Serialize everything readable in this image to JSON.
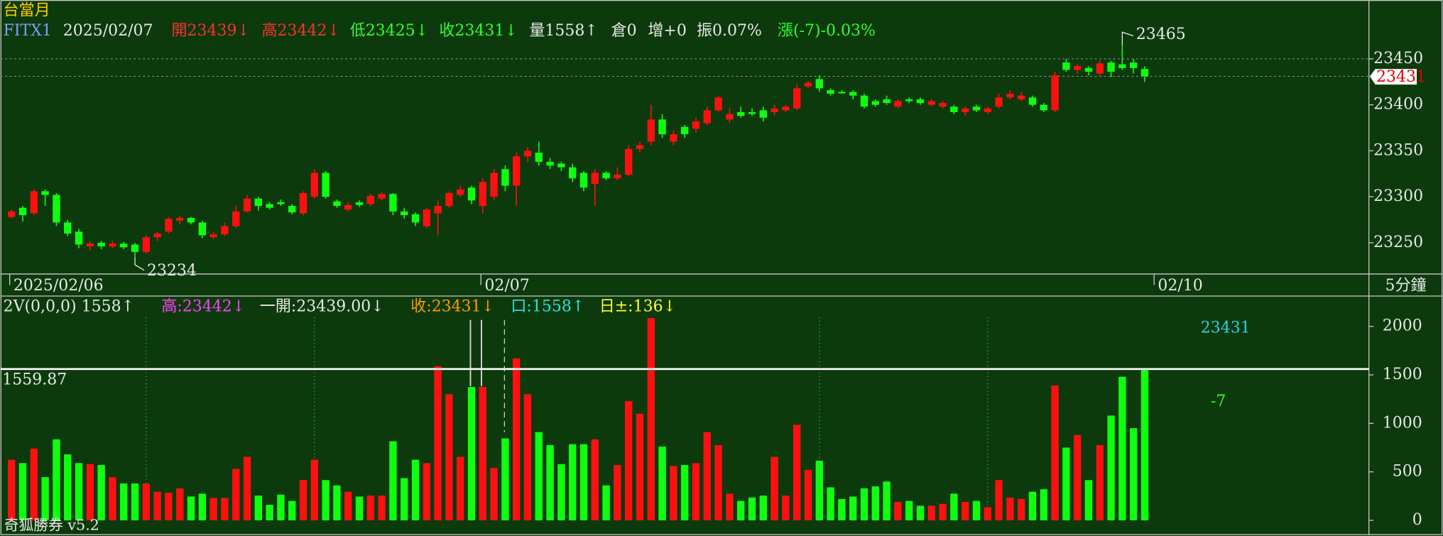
{
  "chart_data": [
    {
      "type": "candlestick",
      "title": "台當月",
      "info": [
        {
          "text": "FITX1",
          "color": "#7f9cff"
        },
        {
          "text": "2025/02/07",
          "color": "#e8e8e8"
        },
        {
          "text": "開23439↓",
          "color": "#ff3030"
        },
        {
          "text": "高23442↓",
          "color": "#ff3030"
        },
        {
          "text": "低23425↓",
          "color": "#30ff30"
        },
        {
          "text": "收23431↓",
          "color": "#30ff30"
        },
        {
          "text": "量1558↑",
          "color": "#e8e8e8"
        },
        {
          "text": "倉0",
          "color": "#e8e8e8"
        },
        {
          "text": "增+0",
          "color": "#e8e8e8"
        },
        {
          "text": "振0.07%",
          "color": "#e8e8e8"
        },
        {
          "text": "漲(-7)-0.03%",
          "color": "#30ff30"
        }
      ],
      "categories": [
        "2025/02/06",
        null,
        null,
        null,
        null,
        null,
        null,
        null,
        null,
        null,
        null,
        null,
        null,
        null,
        null,
        null,
        null,
        null,
        null,
        null,
        null,
        null,
        null,
        null,
        null,
        null,
        null,
        null,
        null,
        null,
        null,
        null,
        null,
        null,
        null,
        null,
        null,
        null,
        null,
        null,
        null,
        null,
        "02/07",
        null,
        null,
        null,
        null,
        null,
        null,
        null,
        null,
        null,
        null,
        null,
        null,
        null,
        null,
        null,
        null,
        null,
        null,
        null,
        null,
        null,
        null,
        null,
        null,
        null,
        null,
        null,
        null,
        null,
        null,
        null,
        null,
        null,
        null,
        null,
        null,
        null,
        null,
        null,
        null,
        null,
        null,
        null,
        null,
        null,
        null,
        null,
        null,
        null,
        null,
        null,
        null,
        null,
        null,
        null,
        null,
        null,
        null,
        null,
        "02/10"
      ],
      "ohlc": [
        [
          23278,
          23286,
          23276,
          23284
        ],
        [
          23288,
          23290,
          23273,
          23280
        ],
        [
          23282,
          23308,
          23280,
          23306
        ],
        [
          23306,
          23308,
          23290,
          23302
        ],
        [
          23302,
          23304,
          23268,
          23272
        ],
        [
          23272,
          23275,
          23257,
          23260
        ],
        [
          23262,
          23265,
          23244,
          23248
        ],
        [
          23246,
          23252,
          23242,
          23249
        ],
        [
          23250,
          23252,
          23243,
          23246
        ],
        [
          23246,
          23252,
          23244,
          23249
        ],
        [
          23249,
          23251,
          23243,
          23245
        ],
        [
          23248,
          23250,
          23234,
          23240
        ],
        [
          23240,
          23258,
          23238,
          23256
        ],
        [
          23256,
          23262,
          23252,
          23260
        ],
        [
          23262,
          23278,
          23260,
          23276
        ],
        [
          23274,
          23279,
          23270,
          23277
        ],
        [
          23277,
          23278,
          23270,
          23272
        ],
        [
          23272,
          23274,
          23255,
          23258
        ],
        [
          23256,
          23262,
          23254,
          23259
        ],
        [
          23259,
          23272,
          23257,
          23268
        ],
        [
          23268,
          23290,
          23266,
          23284
        ],
        [
          23284,
          23302,
          23283,
          23298
        ],
        [
          23298,
          23300,
          23285,
          23290
        ],
        [
          23292,
          23294,
          23286,
          23288
        ],
        [
          23294,
          23297,
          23290,
          23292
        ],
        [
          23290,
          23292,
          23281,
          23283
        ],
        [
          23282,
          23306,
          23280,
          23304
        ],
        [
          23300,
          23330,
          23298,
          23326
        ],
        [
          23326,
          23328,
          23298,
          23300
        ],
        [
          23295,
          23297,
          23288,
          23290
        ],
        [
          23286,
          23294,
          23284,
          23291
        ],
        [
          23294,
          23296,
          23289,
          23291
        ],
        [
          23292,
          23303,
          23290,
          23301
        ],
        [
          23298,
          23305,
          23296,
          23303
        ],
        [
          23303,
          23304,
          23280,
          23284
        ],
        [
          23284,
          23288,
          23276,
          23280
        ],
        [
          23281,
          23283,
          23268,
          23272
        ],
        [
          23268,
          23288,
          23266,
          23286
        ],
        [
          23282,
          23296,
          23258,
          23290
        ],
        [
          23290,
          23306,
          23288,
          23304
        ],
        [
          23302,
          23312,
          23300,
          23308
        ],
        [
          23310,
          23312,
          23292,
          23296
        ],
        [
          23290,
          23320,
          23282,
          23316
        ],
        [
          23300,
          23330,
          23296,
          23326
        ],
        [
          23330,
          23334,
          23306,
          23312
        ],
        [
          23312,
          23348,
          23290,
          23344
        ],
        [
          23344,
          23354,
          23338,
          23350
        ],
        [
          23348,
          23360,
          23334,
          23338
        ],
        [
          23338,
          23342,
          23330,
          23334
        ],
        [
          23336,
          23338,
          23328,
          23332
        ],
        [
          23332,
          23336,
          23316,
          23320
        ],
        [
          23326,
          23328,
          23306,
          23310
        ],
        [
          23314,
          23330,
          23290,
          23326
        ],
        [
          23326,
          23328,
          23318,
          23320
        ],
        [
          23320,
          23332,
          23318,
          23324
        ],
        [
          23324,
          23356,
          23322,
          23352
        ],
        [
          23352,
          23360,
          23348,
          23356
        ],
        [
          23360,
          23400,
          23356,
          23384
        ],
        [
          23384,
          23390,
          23364,
          23368
        ],
        [
          23360,
          23372,
          23356,
          23368
        ],
        [
          23376,
          23378,
          23364,
          23368
        ],
        [
          23374,
          23386,
          23370,
          23382
        ],
        [
          23380,
          23398,
          23378,
          23394
        ],
        [
          23394,
          23410,
          23392,
          23408
        ],
        [
          23384,
          23396,
          23380,
          23390
        ],
        [
          23392,
          23398,
          23386,
          23388
        ],
        [
          23392,
          23396,
          23388,
          23390
        ],
        [
          23394,
          23398,
          23382,
          23386
        ],
        [
          23392,
          23400,
          23388,
          23396
        ],
        [
          23394,
          23400,
          23392,
          23398
        ],
        [
          23396,
          23422,
          23394,
          23418
        ],
        [
          23420,
          23426,
          23418,
          23424
        ],
        [
          23428,
          23432,
          23414,
          23418
        ],
        [
          23416,
          23418,
          23410,
          23412
        ],
        [
          23414,
          23416,
          23412,
          23413
        ],
        [
          23414,
          23416,
          23406,
          23410
        ],
        [
          23410,
          23412,
          23396,
          23398
        ],
        [
          23404,
          23406,
          23398,
          23400
        ],
        [
          23406,
          23410,
          23400,
          23402
        ],
        [
          23398,
          23406,
          23396,
          23404
        ],
        [
          23406,
          23408,
          23402,
          23404
        ],
        [
          23406,
          23408,
          23400,
          23402
        ],
        [
          23400,
          23406,
          23398,
          23404
        ],
        [
          23398,
          23404,
          23396,
          23402
        ],
        [
          23398,
          23400,
          23390,
          23392
        ],
        [
          23392,
          23398,
          23388,
          23396
        ],
        [
          23398,
          23400,
          23392,
          23394
        ],
        [
          23392,
          23398,
          23390,
          23396
        ],
        [
          23398,
          23412,
          23396,
          23408
        ],
        [
          23408,
          23416,
          23406,
          23412
        ],
        [
          23406,
          23414,
          23404,
          23410
        ],
        [
          23408,
          23410,
          23398,
          23400
        ],
        [
          23400,
          23402,
          23392,
          23394
        ],
        [
          23394,
          23436,
          23392,
          23432
        ],
        [
          23446,
          23450,
          23436,
          23438
        ],
        [
          23438,
          23444,
          23434,
          23442
        ],
        [
          23440,
          23442,
          23432,
          23436
        ],
        [
          23434,
          23448,
          23432,
          23445
        ],
        [
          23446,
          23448,
          23430,
          23436
        ],
        [
          23444,
          23465,
          23438,
          23440
        ],
        [
          23446,
          23450,
          23434,
          23440
        ],
        [
          23439,
          23442,
          23425,
          23431
        ],
        null
      ],
      "up_color": "#ff1010",
      "down_color": "#10ff10",
      "ylim": [
        23216,
        23514
      ],
      "yticks": [
        23250,
        23300,
        23350,
        23400,
        23450
      ],
      "gridlines": [
        23450
      ],
      "last_price": 23431,
      "max_label": 23465,
      "min_label": 23234,
      "period": "5分鐘"
    },
    {
      "type": "bar",
      "info": [
        {
          "text": "2V(0,0,0) 1558↑",
          "color": "#e8e8e8"
        },
        {
          "text": "高:23442↓",
          "color": "#ff40ff"
        },
        {
          "text": "一開:23439.00↓",
          "color": "#e8e8e8"
        },
        {
          "text": "收:23431↓",
          "color": "#ff9900"
        },
        {
          "text": "口:1558↑",
          "color": "#30e0e0"
        },
        {
          "text": "日±:136↓",
          "color": "#ffff30"
        }
      ],
      "values": [
        625,
        590,
        740,
        445,
        835,
        680,
        590,
        580,
        570,
        445,
        380,
        380,
        380,
        295,
        285,
        330,
        245,
        275,
        230,
        230,
        530,
        655,
        255,
        160,
        265,
        200,
        415,
        625,
        415,
        360,
        295,
        245,
        255,
        255,
        815,
        435,
        625,
        590,
        1590,
        1300,
        655,
        1375,
        1375,
        540,
        845,
        1670,
        1300,
        910,
        775,
        580,
        785,
        785,
        835,
        360,
        570,
        1230,
        1100,
        2085,
        760,
        560,
        570,
        590,
        910,
        775,
        275,
        200,
        235,
        255,
        655,
        255,
        985,
        520,
        615,
        340,
        220,
        245,
        330,
        350,
        400,
        190,
        200,
        150,
        150,
        170,
        275,
        190,
        200,
        135,
        415,
        235,
        220,
        295,
        320,
        1390,
        750,
        880,
        415,
        775,
        1080,
        1480,
        950,
        1558,
        null
      ],
      "ylim": [
        -133,
        2284
      ],
      "yticks": [
        0,
        500,
        1000,
        1500,
        2000
      ],
      "reference_line": 1559.87,
      "annotations": [
        {
          "text": "23431",
          "color": "#30d0e0"
        },
        {
          "text": "-7",
          "color": "#30ff30"
        }
      ]
    }
  ],
  "footer": "奇狐勝券 v5.2"
}
